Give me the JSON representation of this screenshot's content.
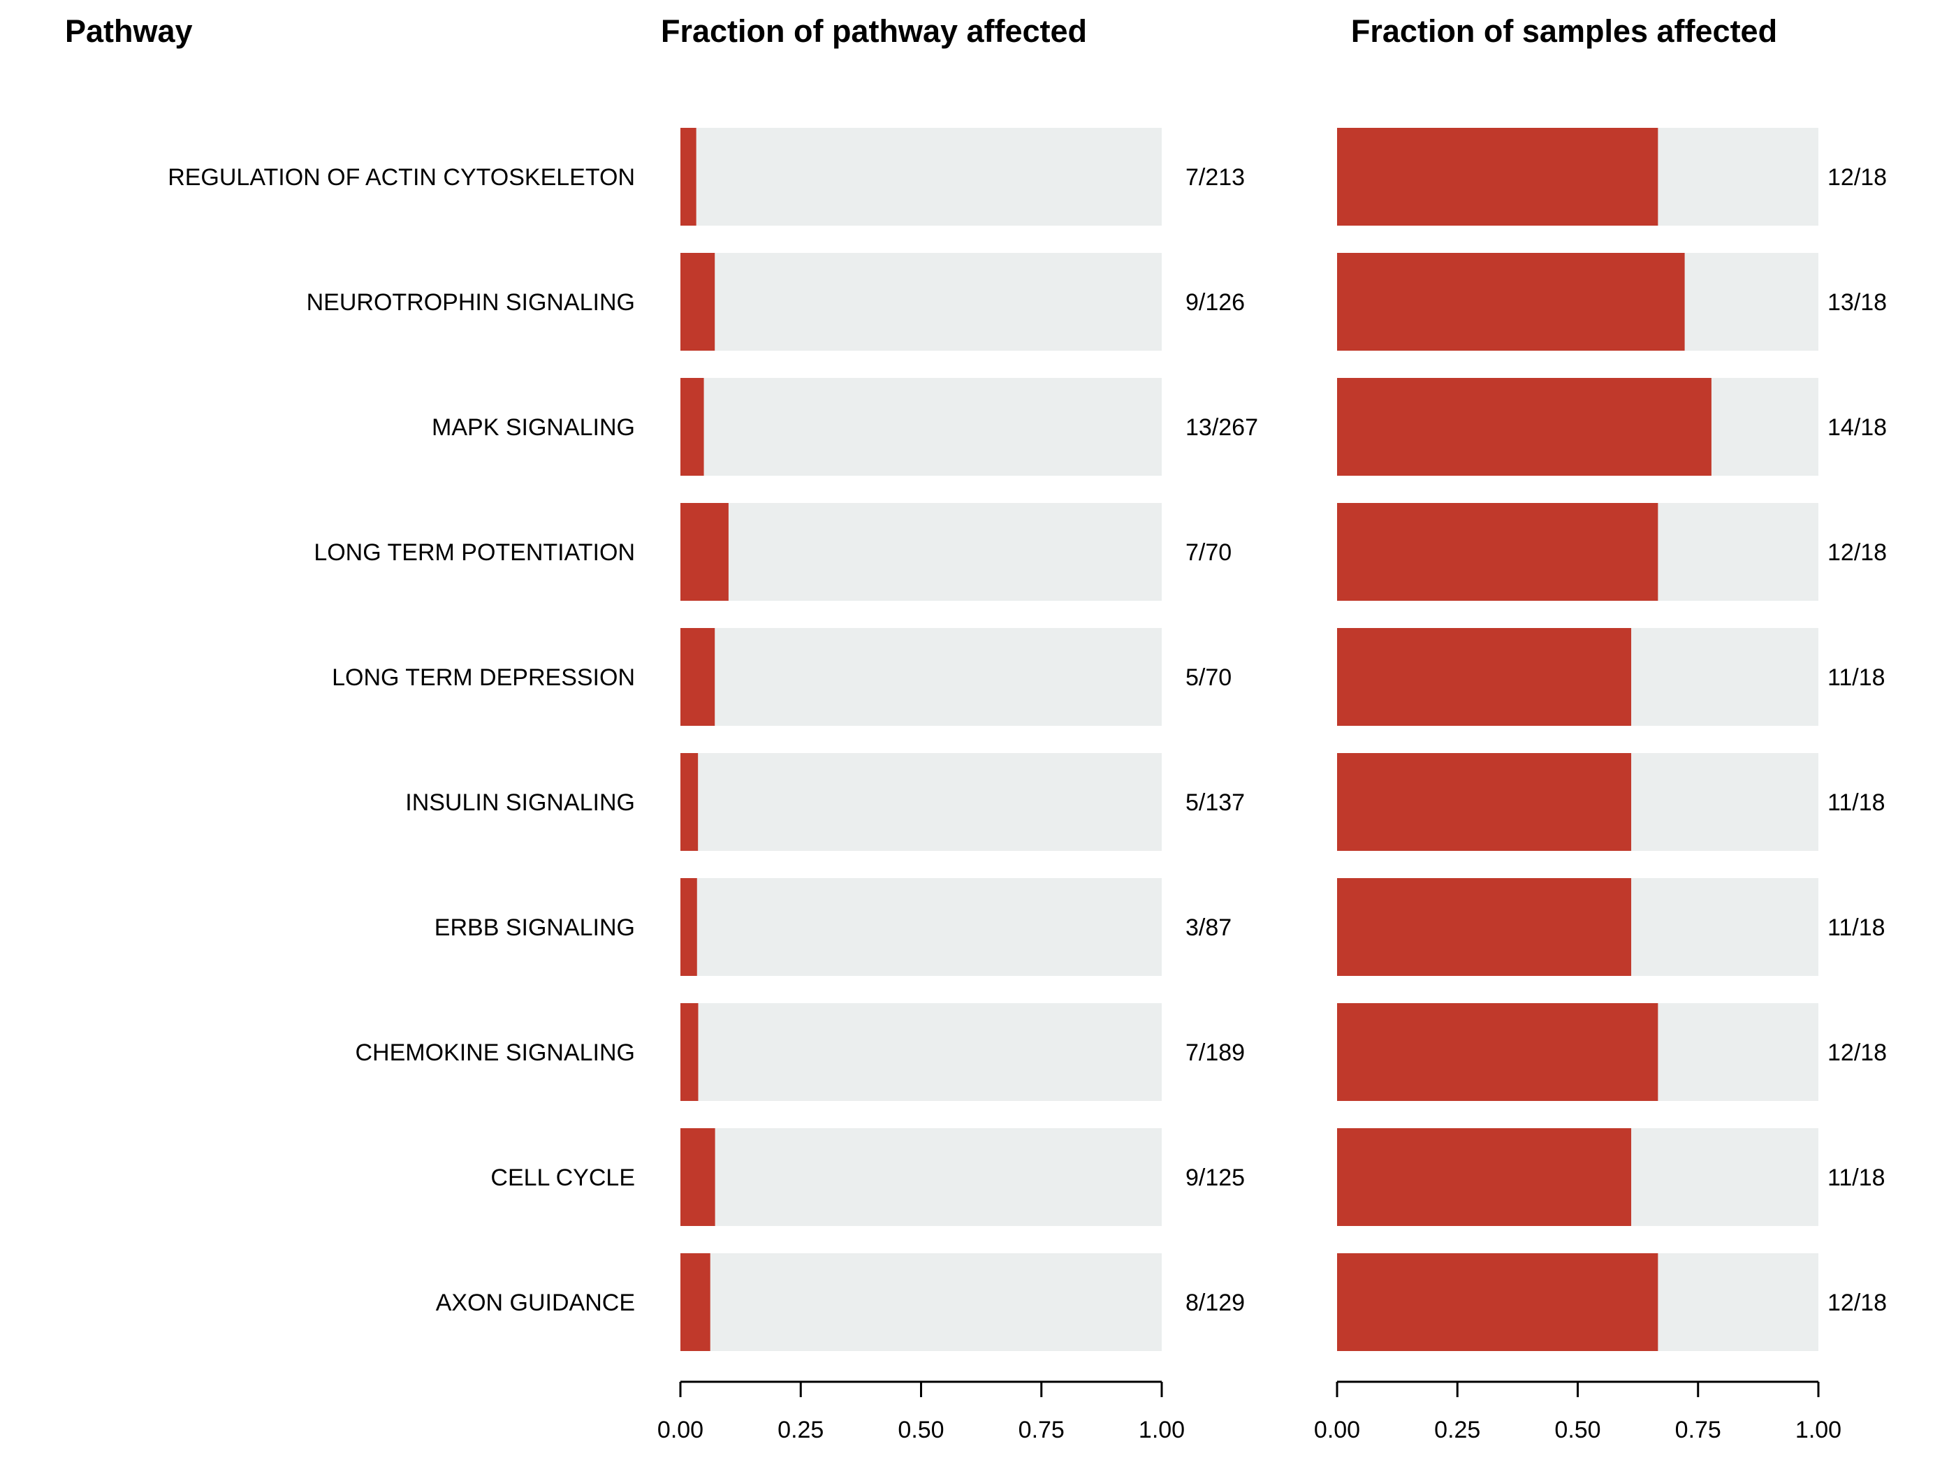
{
  "headers": {
    "pathway": "Pathway",
    "panel1": "Fraction of pathway affected",
    "panel2": "Fraction of samples affected"
  },
  "colors": {
    "bar": "#c0392b",
    "background_bar": "#ebeeee",
    "axis": "#000000"
  },
  "chart_data": [
    {
      "type": "bar",
      "orientation": "horizontal",
      "stacked_on_background_to": 1.0,
      "title": "Fraction of pathway affected",
      "categories": [
        "REGULATION OF ACTIN CYTOSKELETON",
        "NEUROTROPHIN SIGNALING",
        "MAPK SIGNALING",
        "LONG TERM POTENTIATION",
        "LONG TERM DEPRESSION",
        "INSULIN SIGNALING",
        "ERBB SIGNALING",
        "CHEMOKINE SIGNALING",
        "CELL CYCLE",
        "AXON GUIDANCE"
      ],
      "values": [
        0.0329,
        0.0714,
        0.0487,
        0.1,
        0.0714,
        0.0365,
        0.0345,
        0.037,
        0.072,
        0.062
      ],
      "data_labels": [
        "7/213",
        "9/126",
        "13/267",
        "7/70",
        "5/70",
        "5/137",
        "3/87",
        "7/189",
        "9/125",
        "8/129"
      ],
      "xlim": [
        0,
        1
      ],
      "x_ticks": [
        "0.00",
        "0.25",
        "0.50",
        "0.75",
        "1.00"
      ],
      "grid": false
    },
    {
      "type": "bar",
      "orientation": "horizontal",
      "stacked_on_background_to": 1.0,
      "title": "Fraction of samples affected",
      "categories": [
        "REGULATION OF ACTIN CYTOSKELETON",
        "NEUROTROPHIN SIGNALING",
        "MAPK SIGNALING",
        "LONG TERM POTENTIATION",
        "LONG TERM DEPRESSION",
        "INSULIN SIGNALING",
        "ERBB SIGNALING",
        "CHEMOKINE SIGNALING",
        "CELL CYCLE",
        "AXON GUIDANCE"
      ],
      "values": [
        0.6667,
        0.7222,
        0.7778,
        0.6667,
        0.6111,
        0.6111,
        0.6111,
        0.6667,
        0.6111,
        0.6667
      ],
      "data_labels": [
        "12/18",
        "13/18",
        "14/18",
        "12/18",
        "11/18",
        "11/18",
        "11/18",
        "12/18",
        "11/18",
        "12/18"
      ],
      "xlim": [
        0,
        1
      ],
      "x_ticks": [
        "0.00",
        "0.25",
        "0.50",
        "0.75",
        "1.00"
      ],
      "grid": false
    }
  ]
}
